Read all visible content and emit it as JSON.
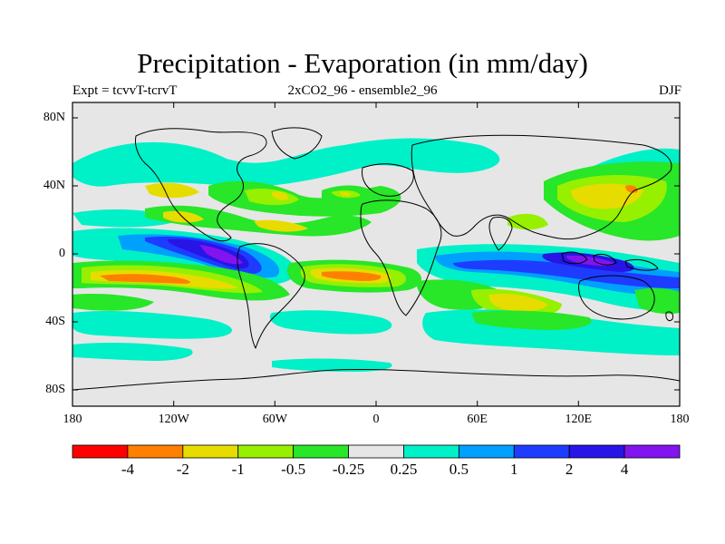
{
  "title": "Precipitation - Evaporation (in mm/day)",
  "subtitle_left": "Expt = tcvvT-tcrvT",
  "subtitle_center": "2xCO2_96 - ensemble2_96",
  "subtitle_right": "DJF",
  "y_axis_labels": [
    "80N",
    "40N",
    "0",
    "40S",
    "80S"
  ],
  "x_axis_labels": [
    "180",
    "120W",
    "60W",
    "0",
    "60E",
    "120E",
    "180"
  ],
  "colorbar": {
    "colors": [
      "#ff0000",
      "#ff8000",
      "#e6dc00",
      "#96f000",
      "#28e628",
      "#e6e6e6",
      "#00f0c8",
      "#00a0ff",
      "#1e3cff",
      "#2814e6",
      "#8214f0"
    ],
    "labels": [
      "-4",
      "-2",
      "-1",
      "-0.5",
      "-0.25",
      "0.25",
      "0.5",
      "1",
      "2",
      "4"
    ]
  },
  "palette": {
    "neutral": "#e6e6e6",
    "green": "#28e628",
    "lightgreen": "#96f000",
    "yellow": "#e6dc00",
    "orange": "#ff8000",
    "red": "#ff0000",
    "cyan": "#00f0c8",
    "skyblue": "#00a0ff",
    "blue": "#1e3cff",
    "darkblue": "#2814e6",
    "purple": "#8214f0"
  }
}
